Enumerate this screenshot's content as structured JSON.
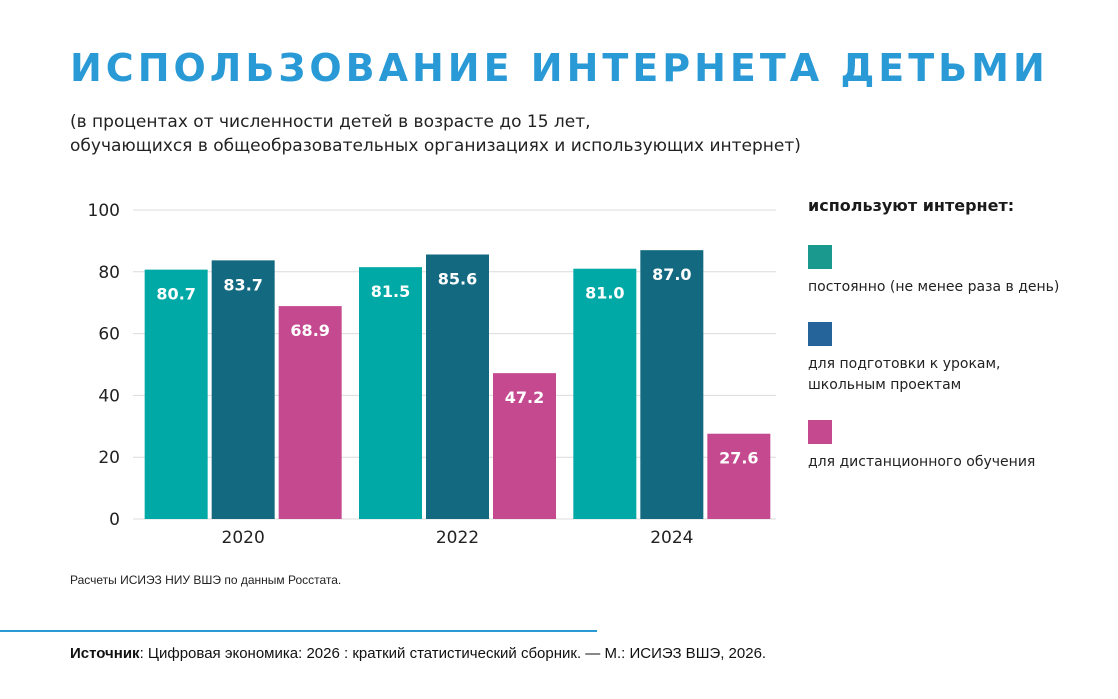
{
  "title": "ИСПОЛЬЗОВАНИЕ ИНТЕРНЕТА ДЕТЬМИ",
  "subtitle": [
    "(в процентах от численности детей в возрасте до 15 лет,",
    "обучающихся в общеобразовательных организациях и использующих интернет)"
  ],
  "note": "Расчеты ИСИЭЗ НИУ ВШЭ по данным Росстата.",
  "source": {
    "label": "Источник",
    "text": ": Цифровая экономика: 2026 : краткий статистический сборник. — М.: ИСИЭЗ ВШЭ, 2026."
  },
  "chart_data": {
    "type": "bar",
    "title": "ИСПОЛЬЗОВАНИЕ ИНТЕРНЕТА ДЕТЬМИ",
    "categories": [
      "2020",
      "2022",
      "2024"
    ],
    "ylim": [
      0,
      100
    ],
    "yticks": [
      0,
      20,
      40,
      60,
      80,
      100
    ],
    "grid": true,
    "legend_position": "right",
    "legend_title": "используют интернет:",
    "series": [
      {
        "name": "постоянно (не менее раза в день)",
        "values": [
          80.7,
          81.5,
          81.0
        ],
        "color": "#00a9a5",
        "legend_color": "#1a9a8f"
      },
      {
        "name": "для подготовки к урокам,\nшкольным проектам",
        "values": [
          83.7,
          85.6,
          87.0
        ],
        "color": "#136a80",
        "legend_color": "#25649a"
      },
      {
        "name": "для дистанционного обучения",
        "values": [
          68.9,
          47.2,
          27.6
        ],
        "color": "#c4498e",
        "legend_color": "#c4498e"
      }
    ]
  }
}
